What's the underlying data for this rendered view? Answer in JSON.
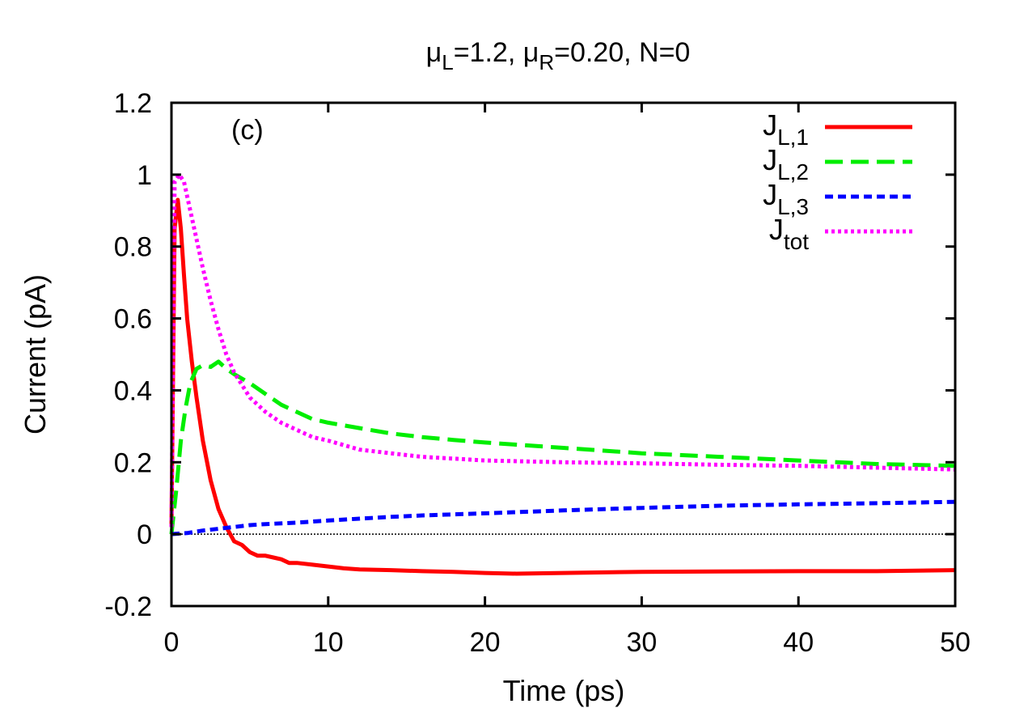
{
  "chart_data": {
    "type": "line",
    "title": {
      "mu": "μ",
      "left_sub": "L",
      "left_eq": "=1.2, ",
      "right_sub": "R",
      "right_eq": "=0.20, N=0"
    },
    "panel_label": "(c)",
    "xlabel": "Time (ps)",
    "ylabel": "Current (pA)",
    "xlim": [
      0,
      50
    ],
    "ylim": [
      -0.2,
      1.2
    ],
    "xticks": [
      0,
      10,
      20,
      30,
      40,
      50
    ],
    "xtick_labels": [
      "0",
      "10",
      "20",
      "30",
      "40",
      "50"
    ],
    "yticks": [
      -0.2,
      0,
      0.2,
      0.4,
      0.6,
      0.8,
      1,
      1.2
    ],
    "ytick_labels": [
      "-0.2",
      "0",
      "0.2",
      "0.4",
      "0.6",
      "0.8",
      "1",
      "1.2"
    ],
    "zero_line": true,
    "legend_position": "top-right",
    "series": [
      {
        "name": "J_L,1",
        "label_main": "J",
        "label_sub": "L,1",
        "color": "#ff0000",
        "style": "solid",
        "x": [
          0,
          0.2,
          0.4,
          0.6,
          0.8,
          1.0,
          1.3,
          1.6,
          2.0,
          2.5,
          3.0,
          3.5,
          4.0,
          4.5,
          5.0,
          5.5,
          6.0,
          6.5,
          7.0,
          7.5,
          8.0,
          9.0,
          10,
          11,
          12,
          14,
          16,
          18,
          20,
          22,
          25,
          28,
          30,
          35,
          40,
          45,
          50
        ],
        "values": [
          0.02,
          0.85,
          0.93,
          0.85,
          0.72,
          0.6,
          0.48,
          0.38,
          0.26,
          0.15,
          0.07,
          0.02,
          -0.02,
          -0.03,
          -0.05,
          -0.06,
          -0.06,
          -0.065,
          -0.07,
          -0.08,
          -0.08,
          -0.085,
          -0.09,
          -0.095,
          -0.098,
          -0.1,
          -0.103,
          -0.105,
          -0.108,
          -0.11,
          -0.108,
          -0.106,
          -0.105,
          -0.104,
          -0.103,
          -0.103,
          -0.1
        ]
      },
      {
        "name": "J_L,2",
        "label_main": "J",
        "label_sub": "L,2",
        "color": "#00ee00",
        "style": "dashed",
        "x": [
          0,
          0.3,
          0.6,
          0.9,
          1.2,
          1.6,
          2.0,
          2.5,
          3.0,
          3.5,
          4.0,
          5.0,
          6.0,
          7.0,
          8.0,
          9.0,
          10,
          12,
          14,
          16,
          18,
          20,
          25,
          30,
          35,
          40,
          45,
          50
        ],
        "values": [
          0.0,
          0.12,
          0.26,
          0.35,
          0.42,
          0.46,
          0.47,
          0.465,
          0.48,
          0.46,
          0.445,
          0.42,
          0.39,
          0.36,
          0.34,
          0.32,
          0.31,
          0.295,
          0.28,
          0.27,
          0.262,
          0.255,
          0.24,
          0.225,
          0.215,
          0.205,
          0.195,
          0.19
        ]
      },
      {
        "name": "J_L,3",
        "label_main": "J",
        "label_sub": "L,3",
        "color": "#0000ff",
        "style": "short-dashed",
        "x": [
          0,
          1,
          2,
          3,
          4,
          5,
          6,
          8,
          10,
          12,
          14,
          16,
          20,
          25,
          30,
          35,
          40,
          45,
          50
        ],
        "values": [
          0.0,
          0.003,
          0.01,
          0.015,
          0.02,
          0.025,
          0.028,
          0.032,
          0.038,
          0.043,
          0.048,
          0.052,
          0.058,
          0.066,
          0.073,
          0.079,
          0.083,
          0.086,
          0.09
        ]
      },
      {
        "name": "J_tot",
        "label_main": "J",
        "label_sub": "tot",
        "color": "#ff00ff",
        "style": "dotted",
        "x": [
          0,
          0.2,
          0.5,
          0.8,
          1.0,
          1.5,
          2.0,
          2.5,
          3.0,
          3.5,
          4.0,
          5.0,
          6.0,
          7.0,
          8.0,
          9.0,
          10,
          12,
          14,
          16,
          18,
          20,
          25,
          30,
          35,
          40,
          45,
          50
        ],
        "values": [
          0.02,
          0.98,
          1.0,
          0.98,
          0.94,
          0.84,
          0.74,
          0.65,
          0.57,
          0.5,
          0.45,
          0.38,
          0.34,
          0.31,
          0.29,
          0.27,
          0.26,
          0.235,
          0.225,
          0.215,
          0.21,
          0.205,
          0.2,
          0.197,
          0.193,
          0.19,
          0.185,
          0.18
        ]
      }
    ]
  }
}
